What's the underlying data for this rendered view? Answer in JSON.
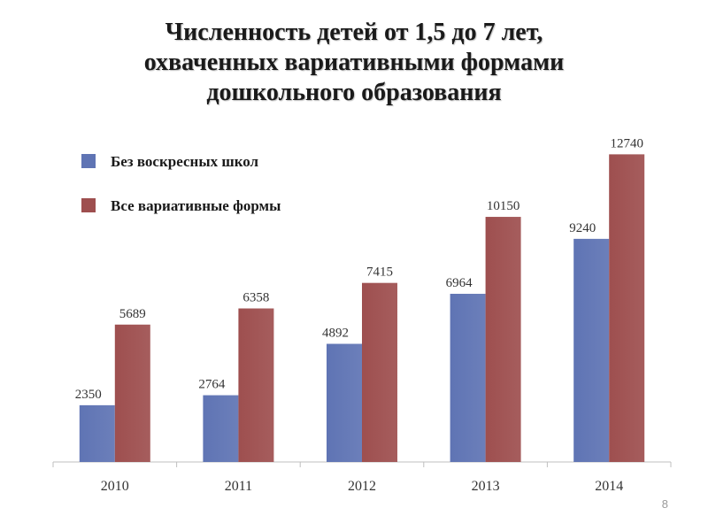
{
  "title_lines": [
    "Численность детей от 1,5 до 7 лет,",
    "охваченных вариативными формами",
    "дошкольного образования"
  ],
  "page_number": "8",
  "colors": {
    "series1": "#5f74b4",
    "series2": "#9e4f4f",
    "axis": "#bfbfbf"
  },
  "chart_data": {
    "type": "bar",
    "title": "Численность детей от 1,5 до 7 лет, охваченных вариативными формами дошкольного образования",
    "categories": [
      "2010",
      "2011",
      "2012",
      "2013",
      "2014"
    ],
    "series": [
      {
        "name": "Без воскресных школ",
        "values": [
          2350,
          2764,
          4892,
          6964,
          9240
        ]
      },
      {
        "name": "Все вариативные формы",
        "values": [
          5689,
          6358,
          7415,
          10150,
          12740
        ]
      }
    ],
    "ylim": [
      0,
      14000
    ],
    "grid": false,
    "legend": "top-left",
    "data_labels": true
  }
}
